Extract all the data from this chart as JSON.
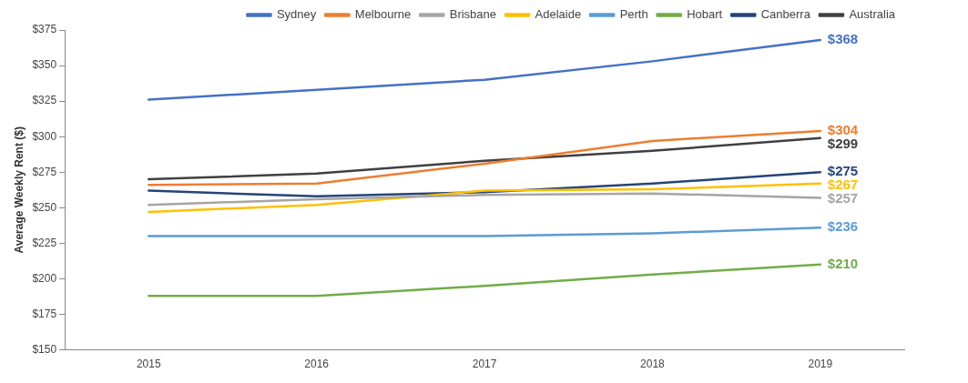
{
  "chart_data": {
    "type": "line",
    "ylabel": "Average Weekly Rent ($)",
    "categories": [
      "2015",
      "2016",
      "2017",
      "2018",
      "2019"
    ],
    "ylim": [
      150,
      375
    ],
    "yticks": [
      {
        "value": 150,
        "label": "$150"
      },
      {
        "value": 175,
        "label": "$175"
      },
      {
        "value": 200,
        "label": "$200"
      },
      {
        "value": 225,
        "label": "$225"
      },
      {
        "value": 250,
        "label": "$250"
      },
      {
        "value": 275,
        "label": "$275"
      },
      {
        "value": 300,
        "label": "$300"
      },
      {
        "value": 325,
        "label": "$325"
      },
      {
        "value": 350,
        "label": "$350"
      },
      {
        "value": 375,
        "label": "$375"
      }
    ],
    "grid": false,
    "legend": "top",
    "marker": "none",
    "line_style": "solid",
    "series": [
      {
        "name": "Sydney",
        "color": "#4472c4",
        "values": [
          326,
          333,
          340,
          353,
          368
        ],
        "value_labels": [
          null,
          null,
          null,
          null,
          "$368"
        ]
      },
      {
        "name": "Melbourne",
        "color": "#ed7d31",
        "values": [
          266,
          267,
          281,
          297,
          304
        ],
        "value_labels": [
          null,
          null,
          null,
          null,
          "$304"
        ]
      },
      {
        "name": "Brisbane",
        "color": "#a5a5a5",
        "values": [
          252,
          256,
          259,
          260,
          257
        ],
        "value_labels": [
          null,
          null,
          null,
          null,
          "$257"
        ]
      },
      {
        "name": "Adelaide",
        "color": "#ffc000",
        "values": [
          247,
          252,
          262,
          263,
          267
        ],
        "value_labels": [
          null,
          null,
          null,
          null,
          "$267"
        ]
      },
      {
        "name": "Perth",
        "color": "#5b9bd5",
        "values": [
          230,
          230,
          230,
          232,
          236
        ],
        "value_labels": [
          null,
          null,
          null,
          null,
          "$236"
        ]
      },
      {
        "name": "Hobart",
        "color": "#70ad47",
        "values": [
          188,
          188,
          195,
          203,
          210
        ],
        "value_labels": [
          null,
          null,
          null,
          null,
          "$210"
        ]
      },
      {
        "name": "Canberra",
        "color": "#264478",
        "values": [
          262,
          258,
          261,
          267,
          275
        ],
        "value_labels": [
          null,
          null,
          null,
          null,
          "$275"
        ]
      },
      {
        "name": "Australia",
        "color": "#404040",
        "values": [
          270,
          274,
          283,
          290,
          299
        ],
        "value_labels": [
          null,
          null,
          null,
          null,
          "$299"
        ]
      }
    ]
  }
}
